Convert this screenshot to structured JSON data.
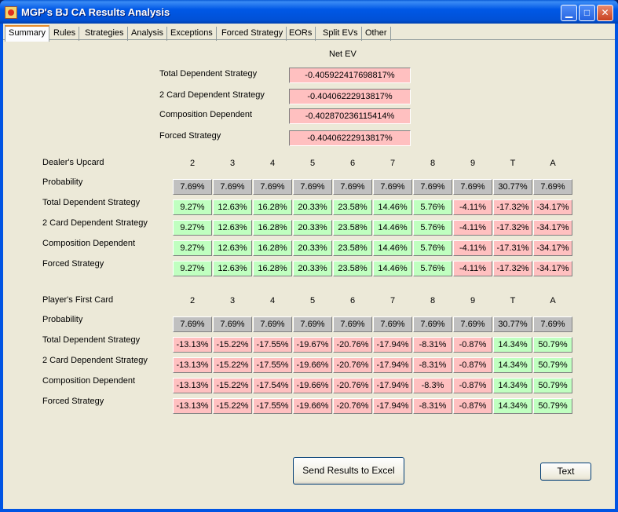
{
  "window": {
    "title": "MGP's BJ CA Results Analysis"
  },
  "tabs": [
    "Summary",
    "Rules",
    "Strategies",
    "Analysis",
    "Exceptions",
    "Forced Strategy",
    "EORs",
    "Split EVs",
    "Other"
  ],
  "net_ev": {
    "header": "Net EV",
    "rows": [
      {
        "label": "Total Dependent Strategy",
        "value": "-0.405922417698817%"
      },
      {
        "label": "2 Card Dependent Strategy",
        "value": "-0.40406222913817%"
      },
      {
        "label": "Composition Dependent",
        "value": "-0.402870236115414%"
      },
      {
        "label": "Forced Strategy",
        "value": "-0.40406222913817%"
      }
    ]
  },
  "dealer": {
    "header": "Dealer's Upcard",
    "columns": [
      "2",
      "3",
      "4",
      "5",
      "6",
      "7",
      "8",
      "9",
      "T",
      "A"
    ],
    "rows": [
      {
        "label": "Probability",
        "color": "gray",
        "values": [
          "7.69%",
          "7.69%",
          "7.69%",
          "7.69%",
          "7.69%",
          "7.69%",
          "7.69%",
          "7.69%",
          "30.77%",
          "7.69%"
        ]
      },
      {
        "label": "Total Dependent Strategy",
        "values": [
          "9.27%",
          "12.63%",
          "16.28%",
          "20.33%",
          "23.58%",
          "14.46%",
          "5.76%",
          "-4.11%",
          "-17.32%",
          "-34.17%"
        ]
      },
      {
        "label": "2 Card Dependent Strategy",
        "values": [
          "9.27%",
          "12.63%",
          "16.28%",
          "20.33%",
          "23.58%",
          "14.46%",
          "5.76%",
          "-4.11%",
          "-17.32%",
          "-34.17%"
        ]
      },
      {
        "label": "Composition Dependent",
        "values": [
          "9.27%",
          "12.63%",
          "16.28%",
          "20.33%",
          "23.58%",
          "14.46%",
          "5.76%",
          "-4.11%",
          "-17.31%",
          "-34.17%"
        ]
      },
      {
        "label": "Forced Strategy",
        "values": [
          "9.27%",
          "12.63%",
          "16.28%",
          "20.33%",
          "23.58%",
          "14.46%",
          "5.76%",
          "-4.11%",
          "-17.32%",
          "-34.17%"
        ]
      }
    ]
  },
  "player": {
    "header": "Player's First Card",
    "columns": [
      "2",
      "3",
      "4",
      "5",
      "6",
      "7",
      "8",
      "9",
      "T",
      "A"
    ],
    "rows": [
      {
        "label": "Probability",
        "color": "gray",
        "values": [
          "7.69%",
          "7.69%",
          "7.69%",
          "7.69%",
          "7.69%",
          "7.69%",
          "7.69%",
          "7.69%",
          "30.77%",
          "7.69%"
        ]
      },
      {
        "label": "Total Dependent Strategy",
        "values": [
          "-13.13%",
          "-15.22%",
          "-17.55%",
          "-19.67%",
          "-20.76%",
          "-17.94%",
          "-8.31%",
          "-0.87%",
          "14.34%",
          "50.79%"
        ]
      },
      {
        "label": "2 Card Dependent Strategy",
        "values": [
          "-13.13%",
          "-15.22%",
          "-17.55%",
          "-19.66%",
          "-20.76%",
          "-17.94%",
          "-8.31%",
          "-0.87%",
          "14.34%",
          "50.79%"
        ]
      },
      {
        "label": "Composition Dependent",
        "values": [
          "-13.13%",
          "-15.22%",
          "-17.54%",
          "-19.66%",
          "-20.76%",
          "-17.94%",
          "-8.3%",
          "-0.87%",
          "14.34%",
          "50.79%"
        ]
      },
      {
        "label": "Forced Strategy",
        "values": [
          "-13.13%",
          "-15.22%",
          "-17.55%",
          "-19.66%",
          "-20.76%",
          "-17.94%",
          "-8.31%",
          "-0.87%",
          "14.34%",
          "50.79%"
        ]
      }
    ]
  },
  "buttons": {
    "send_excel": "Send Results to Excel",
    "text": "Text"
  },
  "colors": {
    "positive": "#c0ffc0",
    "negative": "#ffc0c0",
    "probability": "#c0c0c0"
  },
  "icons": {
    "app": "app-icon",
    "minimize": "minimize-icon",
    "maximize": "maximize-icon",
    "close": "close-icon"
  }
}
